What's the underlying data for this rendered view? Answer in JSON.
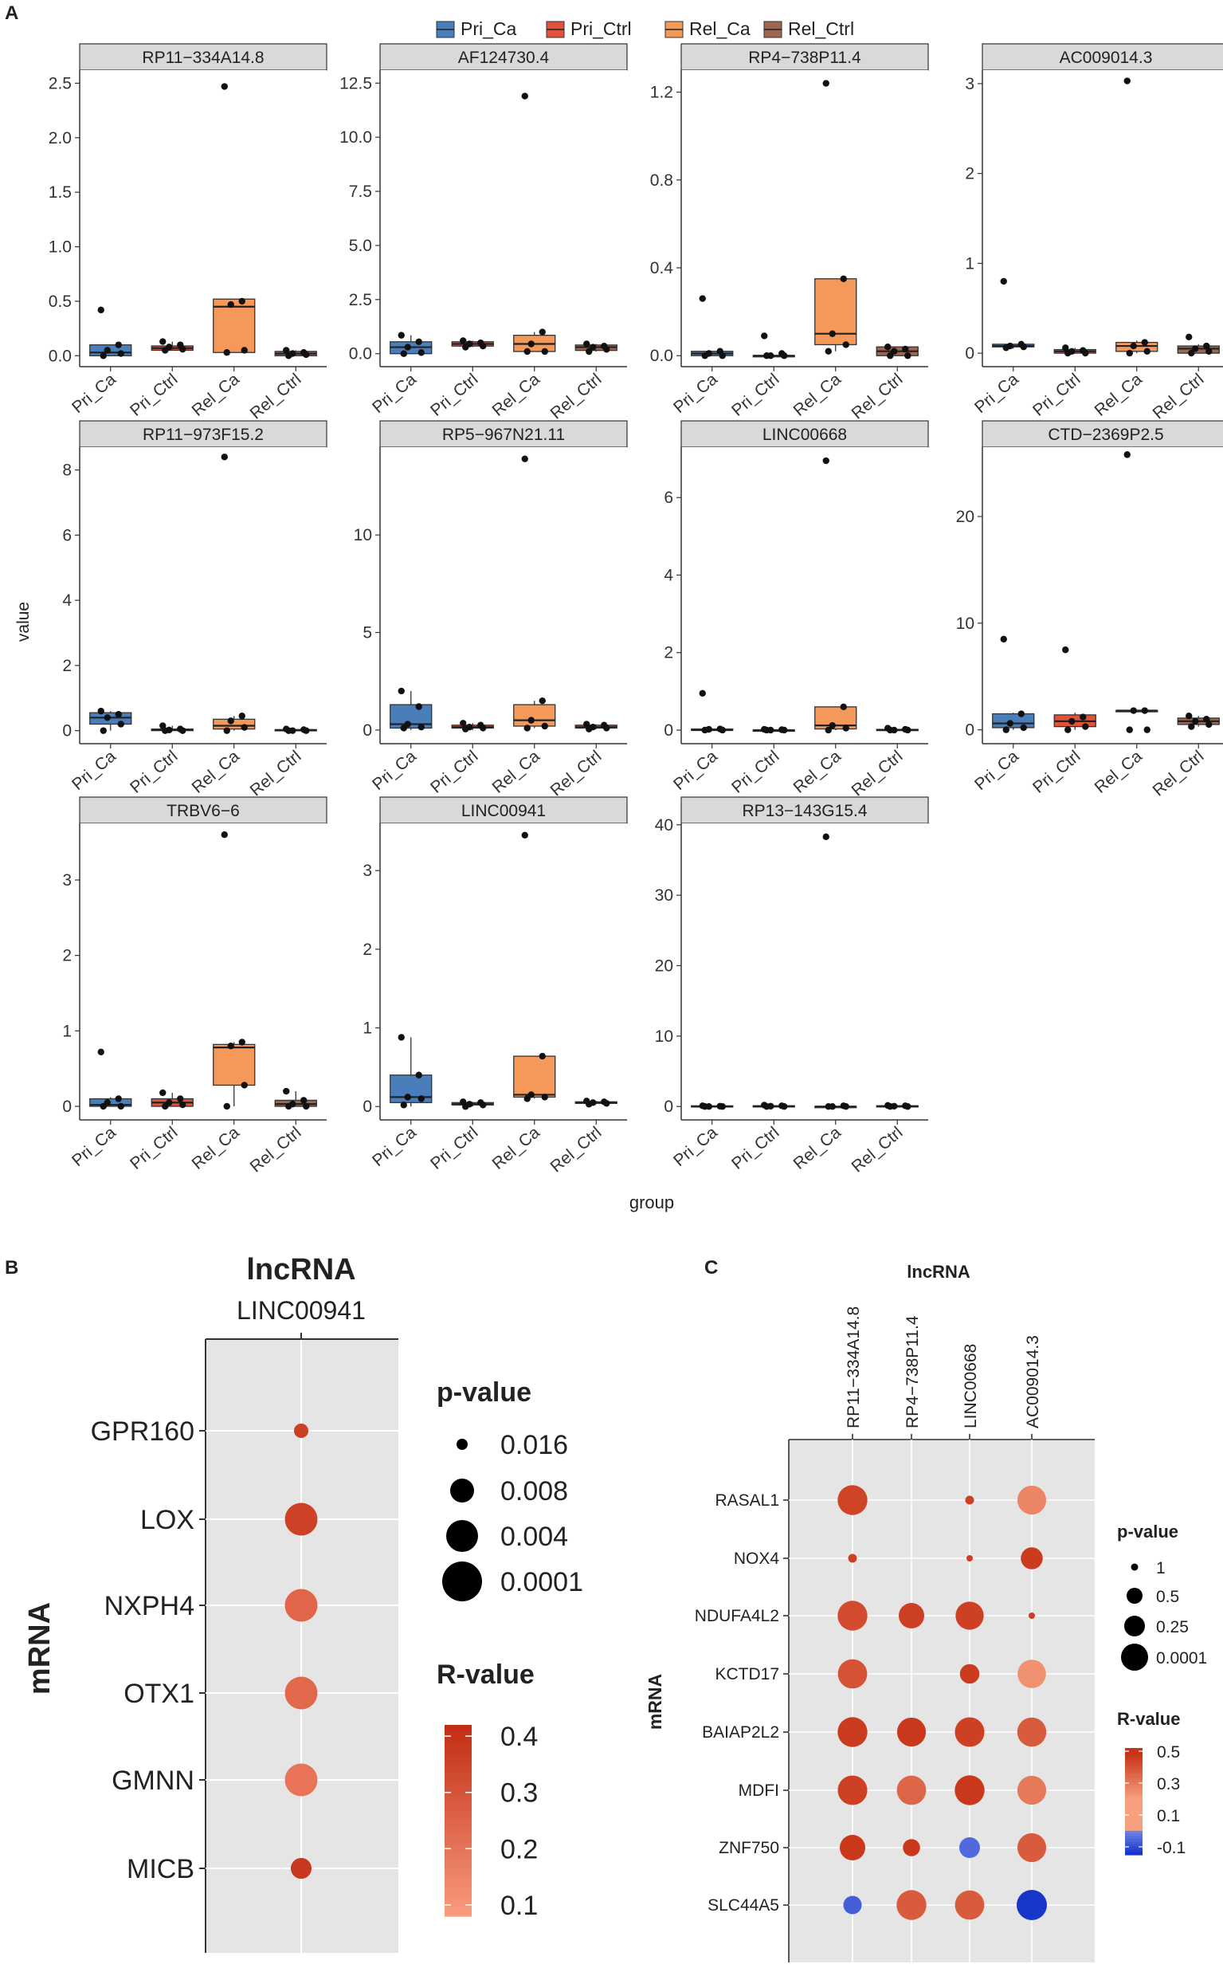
{
  "colors": {
    "Pri_Ca": "#4A7EBB",
    "Pri_Ctrl": "#E0533A",
    "Rel_Ca": "#F4995A",
    "Rel_Ctrl": "#9E6550",
    "panel_bg": "#E5E5E5",
    "strip_bg": "#D9D9D9",
    "r_high": "#C2301A",
    "r_mid": "#F08362",
    "r_neg": "#1A3CC8"
  },
  "chart_data": [
    {
      "panel": "A",
      "panel_label": "A",
      "type": "box",
      "legend": {
        "position": "top",
        "entries": [
          "Pri_Ca",
          "Pri_Ctrl",
          "Rel_Ca",
          "Rel_Ctrl"
        ]
      },
      "categories": [
        "Pri_Ca",
        "Pri_Ctrl",
        "Rel_Ca",
        "Rel_Ctrl"
      ],
      "xlabel": "group",
      "ylabel": "value",
      "facets": [
        {
          "title": "RP11−334A14.8",
          "ylim": [
            -0.1,
            2.62
          ],
          "yticks": [
            0.0,
            0.5,
            1.0,
            1.5,
            2.0,
            2.5
          ],
          "ytick_labels": [
            "0.0",
            "0.5",
            "1.0",
            "1.5",
            "2.0",
            "2.5"
          ],
          "boxes": [
            [
              0.0,
              0.0,
              0.03,
              0.1,
              0.1
            ],
            [
              0.05,
              0.05,
              0.07,
              0.09,
              0.13
            ],
            [
              0.03,
              0.03,
              0.45,
              0.52,
              0.52
            ],
            [
              0.0,
              0.0,
              0.02,
              0.04,
              0.05
            ]
          ],
          "points": [
            [
              0.42,
              0.1,
              0.05,
              0.02,
              0.0
            ],
            [
              0.13,
              0.1,
              0.08,
              0.06,
              0.05
            ],
            [
              2.47,
              0.5,
              0.47,
              0.05,
              0.03
            ],
            [
              0.05,
              0.03,
              0.02,
              0.01,
              0.0
            ]
          ]
        },
        {
          "title": "AF124730.4",
          "ylim": [
            -0.6,
            13.1
          ],
          "yticks": [
            0.0,
            2.5,
            5.0,
            7.5,
            10.0,
            12.5
          ],
          "ytick_labels": [
            "0.0",
            "2.5",
            "5.0",
            "7.5",
            "10.0",
            "12.5"
          ],
          "boxes": [
            [
              0.0,
              0.0,
              0.3,
              0.55,
              0.85
            ],
            [
              0.3,
              0.35,
              0.45,
              0.55,
              0.6
            ],
            [
              0.1,
              0.1,
              0.45,
              0.85,
              1.0
            ],
            [
              0.1,
              0.15,
              0.3,
              0.4,
              0.45
            ]
          ],
          "points": [
            [
              0.85,
              0.55,
              0.3,
              0.05,
              0.0
            ],
            [
              0.6,
              0.5,
              0.45,
              0.35,
              0.3
            ],
            [
              11.9,
              1.0,
              0.45,
              0.1,
              0.1
            ],
            [
              0.45,
              0.35,
              0.3,
              0.2,
              0.1
            ]
          ]
        },
        {
          "title": "RP4−738P11.4",
          "ylim": [
            -0.05,
            1.3
          ],
          "yticks": [
            0.0,
            0.4,
            0.8,
            1.2
          ],
          "ytick_labels": [
            "0.0",
            "0.4",
            "0.8",
            "1.2"
          ],
          "boxes": [
            [
              0.0,
              0.0,
              0.01,
              0.02,
              0.02
            ],
            [
              0.0,
              0.0,
              0.0,
              0.0,
              0.0
            ],
            [
              0.02,
              0.05,
              0.1,
              0.35,
              0.35
            ],
            [
              0.0,
              0.0,
              0.02,
              0.04,
              0.04
            ]
          ],
          "points": [
            [
              0.26,
              0.02,
              0.01,
              0.0,
              0.0
            ],
            [
              0.09,
              0.01,
              0.0,
              0.0,
              0.0
            ],
            [
              1.24,
              0.35,
              0.1,
              0.05,
              0.02
            ],
            [
              0.04,
              0.03,
              0.02,
              0.0,
              0.0
            ]
          ]
        },
        {
          "title": "AC009014.3",
          "ylim": [
            -0.15,
            3.15
          ],
          "yticks": [
            0,
            1,
            2,
            3
          ],
          "ytick_labels": [
            "0",
            "1",
            "2",
            "3"
          ],
          "boxes": [
            [
              0.05,
              0.07,
              0.08,
              0.1,
              0.1
            ],
            [
              0.0,
              0.0,
              0.02,
              0.04,
              0.06
            ],
            [
              0.0,
              0.02,
              0.08,
              0.12,
              0.14
            ],
            [
              0.0,
              0.0,
              0.05,
              0.08,
              0.1
            ]
          ],
          "points": [
            [
              0.8,
              0.1,
              0.08,
              0.07,
              0.06
            ],
            [
              0.06,
              0.03,
              0.02,
              0.0,
              0.0
            ],
            [
              3.03,
              0.12,
              0.08,
              0.02,
              0.0
            ],
            [
              0.18,
              0.08,
              0.05,
              0.02,
              0.0
            ]
          ]
        },
        {
          "title": "RP11−973F15.2",
          "ylim": [
            -0.4,
            8.7
          ],
          "yticks": [
            0,
            2,
            4,
            6,
            8
          ],
          "ytick_labels": [
            "0",
            "2",
            "4",
            "6",
            "8"
          ],
          "boxes": [
            [
              0.0,
              0.2,
              0.4,
              0.55,
              0.6
            ],
            [
              0.0,
              0.0,
              0.02,
              0.05,
              0.15
            ],
            [
              0.0,
              0.05,
              0.15,
              0.35,
              0.45
            ],
            [
              0.0,
              0.0,
              0.02,
              0.03,
              0.05
            ]
          ],
          "points": [
            [
              0.6,
              0.5,
              0.4,
              0.2,
              0.0
            ],
            [
              0.15,
              0.05,
              0.02,
              0.0,
              0.0
            ],
            [
              8.4,
              0.45,
              0.3,
              0.1,
              0.0
            ],
            [
              0.05,
              0.03,
              0.0,
              0.0,
              0.0
            ]
          ]
        },
        {
          "title": "RP5−967N21.11",
          "ylim": [
            -0.7,
            14.5
          ],
          "yticks": [
            0,
            5,
            10
          ],
          "ytick_labels": [
            "0",
            "5",
            "10"
          ],
          "boxes": [
            [
              0.0,
              0.1,
              0.3,
              1.3,
              2.0
            ],
            [
              0.0,
              0.1,
              0.15,
              0.25,
              0.35
            ],
            [
              0.1,
              0.2,
              0.5,
              1.3,
              1.5
            ],
            [
              0.05,
              0.1,
              0.15,
              0.25,
              0.3
            ]
          ],
          "points": [
            [
              2.0,
              1.2,
              0.3,
              0.15,
              0.1
            ],
            [
              0.35,
              0.25,
              0.15,
              0.1,
              0.05
            ],
            [
              13.9,
              1.5,
              0.5,
              0.2,
              0.1
            ],
            [
              0.3,
              0.25,
              0.15,
              0.1,
              0.05
            ]
          ]
        },
        {
          "title": "LINC00668",
          "ylim": [
            -0.35,
            7.3
          ],
          "yticks": [
            0,
            2,
            4,
            6
          ],
          "ytick_labels": [
            "0",
            "2",
            "4",
            "6"
          ],
          "boxes": [
            [
              0.0,
              0.0,
              0.0,
              0.03,
              0.03
            ],
            [
              0.0,
              0.0,
              0.0,
              0.0,
              0.0
            ],
            [
              0.0,
              0.03,
              0.12,
              0.6,
              0.6
            ],
            [
              0.0,
              0.0,
              0.0,
              0.02,
              0.03
            ]
          ],
          "points": [
            [
              0.95,
              0.03,
              0.02,
              0.0,
              0.0
            ],
            [
              0.02,
              0.01,
              0.0,
              0.0,
              0.0
            ],
            [
              6.95,
              0.6,
              0.12,
              0.05,
              0.0
            ],
            [
              0.05,
              0.02,
              0.0,
              0.0,
              0.0
            ]
          ]
        },
        {
          "title": "CTD−2369P2.5",
          "ylim": [
            -1.3,
            26.5
          ],
          "yticks": [
            0,
            10,
            20
          ],
          "ytick_labels": [
            "0",
            "10",
            "20"
          ],
          "boxes": [
            [
              0.0,
              0.2,
              0.6,
              1.5,
              1.6
            ],
            [
              0.0,
              0.3,
              0.8,
              1.4,
              1.6
            ],
            [
              1.8,
              1.8,
              1.8,
              1.8,
              1.8
            ],
            [
              0.3,
              0.5,
              0.8,
              1.1,
              1.3
            ]
          ],
          "points": [
            [
              8.5,
              1.5,
              0.6,
              0.2,
              0.0
            ],
            [
              7.5,
              1.2,
              0.8,
              0.3,
              0.0
            ],
            [
              25.8,
              1.8,
              1.8,
              0.0,
              0.0
            ],
            [
              1.3,
              1.0,
              0.8,
              0.5,
              0.3
            ]
          ]
        },
        {
          "title": "TRBV6−6",
          "ylim": [
            -0.18,
            3.75
          ],
          "yticks": [
            0,
            1,
            2,
            3
          ],
          "ytick_labels": [
            "0",
            "1",
            "2",
            "3"
          ],
          "boxes": [
            [
              0.0,
              0.0,
              0.02,
              0.1,
              0.12
            ],
            [
              0.0,
              0.0,
              0.05,
              0.1,
              0.18
            ],
            [
              0.0,
              0.28,
              0.78,
              0.82,
              0.85
            ],
            [
              0.0,
              0.0,
              0.03,
              0.08,
              0.2
            ]
          ],
          "points": [
            [
              0.72,
              0.1,
              0.05,
              0.0,
              0.0
            ],
            [
              0.18,
              0.1,
              0.05,
              0.02,
              0.0
            ],
            [
              3.6,
              0.85,
              0.8,
              0.28,
              0.0
            ],
            [
              0.2,
              0.08,
              0.03,
              0.0,
              0.0
            ]
          ]
        },
        {
          "title": "LINC00941",
          "ylim": [
            -0.17,
            3.6
          ],
          "yticks": [
            0,
            1,
            2,
            3
          ],
          "ytick_labels": [
            "0",
            "1",
            "2",
            "3"
          ],
          "boxes": [
            [
              0.0,
              0.05,
              0.12,
              0.4,
              0.88
            ],
            [
              0.0,
              0.02,
              0.03,
              0.05,
              0.06
            ],
            [
              0.1,
              0.12,
              0.15,
              0.64,
              0.64
            ],
            [
              0.03,
              0.04,
              0.05,
              0.06,
              0.07
            ]
          ],
          "points": [
            [
              0.88,
              0.4,
              0.12,
              0.1,
              0.02
            ],
            [
              0.06,
              0.05,
              0.03,
              0.02,
              0.0
            ],
            [
              3.45,
              0.64,
              0.15,
              0.12,
              0.1
            ],
            [
              0.07,
              0.06,
              0.05,
              0.04,
              0.03
            ]
          ]
        },
        {
          "title": "RP13−143G15.4",
          "ylim": [
            -1.9,
            40.2
          ],
          "yticks": [
            0,
            10,
            20,
            30,
            40
          ],
          "ytick_labels": [
            "0",
            "10",
            "20",
            "30",
            "40"
          ],
          "boxes": [
            [
              0.0,
              0.0,
              0.0,
              0.1,
              0.1
            ],
            [
              0.0,
              0.0,
              0.05,
              0.1,
              0.2
            ],
            [
              0.0,
              0.0,
              0.0,
              0.0,
              0.0
            ],
            [
              0.0,
              0.0,
              0.05,
              0.1,
              0.15
            ]
          ],
          "points": [
            [
              0.1,
              0.05,
              0.0,
              0.0,
              0.0
            ],
            [
              0.2,
              0.1,
              0.05,
              0.0,
              0.0
            ],
            [
              38.3,
              0.1,
              0.0,
              0.0,
              0.0
            ],
            [
              0.15,
              0.1,
              0.05,
              0.0,
              0.0
            ]
          ]
        }
      ]
    },
    {
      "panel": "B",
      "panel_label": "B",
      "type": "dot",
      "header": "lncRNA",
      "column_labels": [
        "LINC00941"
      ],
      "rows": [
        "GPR160",
        "LOX",
        "NXPH4",
        "OTX1",
        "GMNN",
        "MICB"
      ],
      "ylabel": "mRNA",
      "r_values": [
        0.36,
        0.35,
        0.22,
        0.21,
        0.17,
        0.38
      ],
      "p_values": [
        0.016,
        0.001,
        0.001,
        0.001,
        0.001,
        0.006
      ],
      "legend_p": {
        "title": "p-value",
        "labels": [
          "0.016",
          "0.008",
          "0.004",
          "0.0001"
        ],
        "values": [
          0.016,
          0.008,
          0.004,
          0.0001
        ]
      },
      "legend_r": {
        "title": "R-value",
        "labels": [
          "0.4",
          "0.3",
          "0.2",
          "0.1"
        ],
        "range": [
          0.08,
          0.42
        ]
      }
    },
    {
      "panel": "C",
      "panel_label": "C",
      "type": "dot",
      "header": "lncRNA",
      "column_labels": [
        "RP11−334A14.8",
        "RP4−738P11.4",
        "LINC00668",
        "AC009014.3"
      ],
      "rows": [
        "RASAL1",
        "NOX4",
        "NDUFA4L2",
        "KCTD17",
        "BAIAP2L2",
        "MDFI",
        "ZNF750",
        "SLC44A5"
      ],
      "ylabel": "mRNA",
      "r_values": [
        [
          0.44,
          null,
          0.45,
          0.27
        ],
        [
          0.45,
          null,
          0.45,
          0.46
        ],
        [
          0.42,
          0.45,
          0.45,
          0.45
        ],
        [
          0.4,
          null,
          0.46,
          0.24
        ],
        [
          0.46,
          0.47,
          0.45,
          0.38
        ],
        [
          0.45,
          0.35,
          0.47,
          0.3
        ],
        [
          0.47,
          0.47,
          -0.05,
          0.38
        ],
        [
          -0.07,
          0.38,
          0.38,
          -0.14
        ]
      ],
      "p_values": [
        [
          0.02,
          null,
          0.9,
          0.06
        ],
        [
          0.9,
          null,
          1.0,
          0.35
        ],
        [
          0.02,
          0.2,
          0.09,
          1.0
        ],
        [
          0.04,
          null,
          0.45,
          0.08
        ],
        [
          0.02,
          0.06,
          0.03,
          0.05
        ],
        [
          0.03,
          0.04,
          0.02,
          0.06
        ],
        [
          0.2,
          0.55,
          0.4,
          0.06
        ],
        [
          0.5,
          0.02,
          0.04,
          0.0001
        ]
      ],
      "legend_p": {
        "title": "p-value",
        "labels": [
          "1",
          "0.5",
          "0.25",
          "0.0001"
        ],
        "values": [
          1,
          0.5,
          0.25,
          0.0001
        ]
      },
      "legend_r": {
        "title": "R-value",
        "labels": [
          "0.5",
          "0.3",
          "0.1",
          "-0.1"
        ],
        "range": [
          -0.15,
          0.52
        ]
      }
    }
  ]
}
